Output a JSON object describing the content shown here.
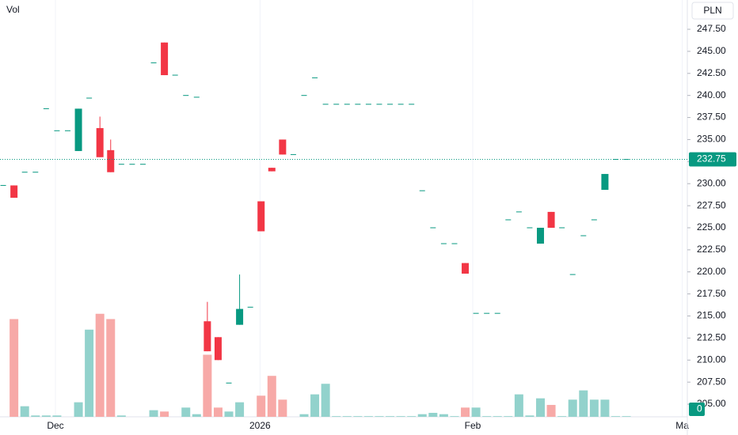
{
  "chart_data": {
    "type": "candlestick",
    "volume_title": "Vol",
    "currency": "PLN",
    "categories": [
      null,
      null,
      null,
      null,
      null,
      null,
      null,
      null,
      null,
      null,
      null,
      null,
      null,
      null,
      null,
      null,
      null,
      null,
      null,
      null,
      null,
      null,
      null,
      null,
      null,
      null,
      null,
      null,
      null,
      null,
      null,
      null,
      null,
      null,
      null,
      null,
      null,
      null,
      null,
      null,
      null,
      null,
      null,
      null,
      null,
      null,
      null,
      null,
      null,
      null,
      null,
      null,
      null,
      null,
      null,
      null,
      null,
      null,
      null
    ],
    "open": [
      229.8,
      229.8,
      231.3,
      231.3,
      238.5,
      236,
      236,
      233.7,
      239.7,
      236.3,
      233.8,
      232.2,
      232.2,
      232.2,
      243.7,
      246,
      242.3,
      240,
      239.8,
      214.4,
      212.6,
      207.4,
      214,
      216,
      228,
      231.8,
      235,
      233.3,
      240,
      242,
      239,
      239,
      239,
      239,
      239,
      239,
      239,
      239,
      239,
      229.2,
      225,
      223.2,
      223.2,
      221,
      215.3,
      215.3,
      215.3,
      225.9,
      226.8,
      225,
      223.2,
      226.8,
      225,
      219.7,
      224.1,
      225.9,
      229.3,
      232.75,
      232.75
    ],
    "high": [
      229.8,
      229.8,
      231.3,
      231.3,
      238.5,
      236,
      236,
      238.5,
      239.7,
      237.6,
      235,
      232.2,
      232.2,
      232.2,
      243.7,
      246,
      242.3,
      240,
      239.8,
      216.6,
      212.6,
      207.4,
      219.7,
      216,
      228,
      231.8,
      235,
      233.3,
      240,
      242,
      239,
      239,
      239,
      239,
      239,
      239,
      239,
      239,
      239,
      229.2,
      225,
      223.2,
      223.2,
      221,
      215.3,
      215.3,
      215.3,
      225.9,
      226.8,
      225,
      225,
      226.8,
      225,
      219.7,
      224.1,
      225.9,
      231.1,
      232.75,
      232.75
    ],
    "low": [
      229.8,
      228.4,
      231.3,
      231.3,
      238.5,
      236,
      236,
      233.7,
      239.7,
      233,
      231.3,
      232.2,
      232.2,
      232.2,
      243.7,
      242.3,
      242.3,
      240,
      239.8,
      211,
      210,
      207.4,
      214,
      216,
      224.6,
      231.4,
      233.3,
      233.3,
      240,
      242,
      239,
      239,
      239,
      239,
      239,
      239,
      239,
      239,
      239,
      229.2,
      225,
      223.2,
      223.2,
      219.8,
      215.3,
      215.3,
      215.3,
      225.9,
      226.8,
      225,
      223.2,
      225,
      225,
      219.7,
      224.1,
      225.9,
      229.3,
      232.75,
      232.75
    ],
    "close": [
      229.8,
      228.4,
      231.3,
      231.3,
      238.5,
      236,
      236,
      238.5,
      239.7,
      233,
      231.3,
      232.2,
      232.2,
      232.2,
      243.7,
      242.3,
      242.3,
      240,
      239.8,
      211,
      210,
      207.4,
      215.8,
      216,
      224.6,
      231.4,
      233.3,
      233.3,
      240,
      242,
      239,
      239,
      239,
      239,
      239,
      239,
      239,
      239,
      239,
      229.2,
      225,
      223.2,
      223.2,
      219.8,
      215.3,
      215.3,
      215.3,
      225.9,
      226.8,
      225,
      225,
      225,
      225,
      219.7,
      224.1,
      225.9,
      231.1,
      232.75,
      232.75
    ],
    "volume": [
      0,
      74,
      8,
      1,
      1,
      1,
      0,
      11,
      66,
      78,
      74,
      1,
      0,
      0,
      5,
      4,
      0,
      7,
      2,
      47,
      7,
      4,
      11,
      0,
      16,
      31,
      13,
      0,
      2,
      17,
      25,
      0.5,
      0.5,
      0.5,
      0.5,
      0.5,
      0.5,
      0.5,
      0.5,
      2,
      3,
      2,
      0.5,
      7,
      7,
      0.5,
      0.5,
      0.5,
      17,
      1,
      14,
      9,
      0.5,
      13,
      20,
      13,
      13,
      0.5,
      0.5
    ],
    "up_color": "#089981",
    "down_color": "#f23645",
    "volume_up_color": "#92d2cc",
    "volume_down_color": "#f7a9a7",
    "ylim": [
      203.57,
      250.82
    ],
    "volume_lim": [
      0,
      100
    ],
    "xlim": [
      -0.3,
      63.67
    ],
    "yticks": [
      {
        "value": 205,
        "label": "205.00"
      },
      {
        "value": 207.5,
        "label": "207.50"
      },
      {
        "value": 210,
        "label": "210.00"
      },
      {
        "value": 212.5,
        "label": "212.50"
      },
      {
        "value": 215,
        "label": "215.00"
      },
      {
        "value": 217.5,
        "label": "217.50"
      },
      {
        "value": 220,
        "label": "220.00"
      },
      {
        "value": 222.5,
        "label": "222.50"
      },
      {
        "value": 225,
        "label": "225.00"
      },
      {
        "value": 227.5,
        "label": "227.50"
      },
      {
        "value": 230,
        "label": "230.00"
      },
      {
        "value": 232.5,
        "label": "232.50"
      },
      {
        "value": 235,
        "label": "235.00"
      },
      {
        "value": 237.5,
        "label": "237.50"
      },
      {
        "value": 240,
        "label": "240.00"
      },
      {
        "value": 242.5,
        "label": "242.50"
      },
      {
        "value": 245,
        "label": "245.00"
      },
      {
        "value": 247.5,
        "label": "247.50"
      }
    ],
    "xticks": [
      {
        "value": 4.86,
        "label": "Dec"
      },
      {
        "value": 23.9,
        "label": "2026"
      },
      {
        "value": 43.7,
        "label": "Feb"
      },
      {
        "value": 63.2,
        "label": "Ma"
      }
    ],
    "last_price": {
      "value": 232.75,
      "label": "232.75"
    },
    "last_volume": 0
  }
}
